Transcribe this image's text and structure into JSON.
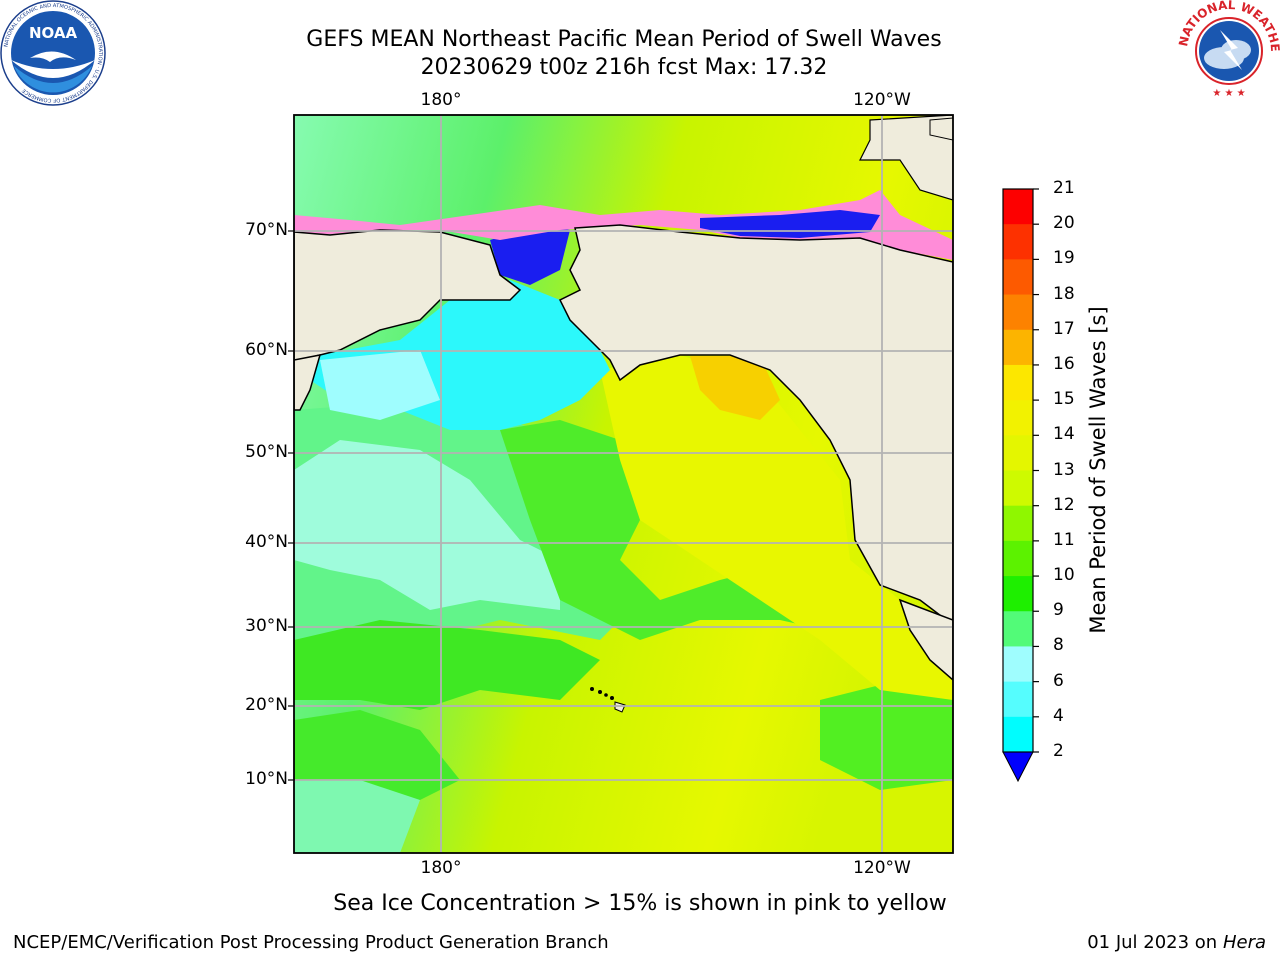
{
  "title": {
    "line1": "GEFS MEAN Northeast Pacific Mean Period of Swell Waves",
    "line2": "20230629 t00z 216h fcst   Max: 17.32"
  },
  "map": {
    "lon_labels": [
      "180°",
      "120°W"
    ],
    "lat_labels": [
      "70°N",
      "60°N",
      "50°N",
      "40°N",
      "30°N",
      "20°N",
      "10°N"
    ],
    "colors": {
      "land": "#efecdc",
      "coast": "#000000",
      "grid": "#b3b3b3"
    }
  },
  "colorbar": {
    "label": "Mean Period of Swell Waves [s]",
    "ticks": [
      "21",
      "20",
      "19",
      "18",
      "17",
      "16",
      "15",
      "14",
      "13",
      "12",
      "11",
      "10",
      "9",
      "8",
      "6",
      "4",
      "2"
    ],
    "colors": [
      "#fd0000",
      "#fd3100",
      "#fd5a00",
      "#fd8200",
      "#fcb400",
      "#fce700",
      "#f2f200",
      "#e4f600",
      "#cefa00",
      "#8ff700",
      "#5cf200",
      "#1eef00",
      "#52fb78",
      "#9ffdfe",
      "#55fdfe",
      "#00fdfe",
      "#00aefe",
      "#0063fe"
    ],
    "under_color": "#0000fd"
  },
  "ice_note": "Sea Ice Concentration > 15% is shown in pink to yellow",
  "footer": {
    "left": "NCEP/EMC/Verification Post Processing Product Generation Branch",
    "right_date": "01 Jul 2023 on ",
    "right_host": "Hera"
  },
  "logos": {
    "noaa_text": "NOAA",
    "noaa_ring": "NATIONAL OCEANIC AND ATMOSPHERIC ADMINISTRATION · U.S. DEPARTMENT OF COMMERCE",
    "nws_ring": "NATIONAL WEATHER SERVICE"
  }
}
